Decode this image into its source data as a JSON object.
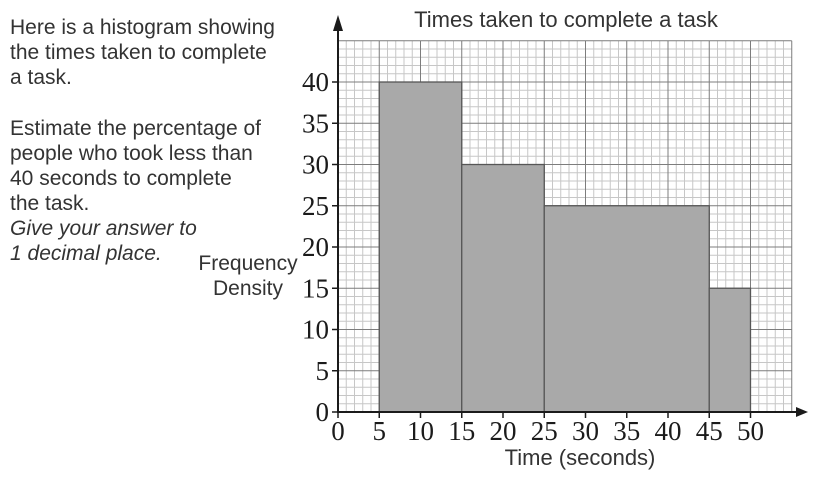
{
  "problem_text": {
    "intro": "Here is a histogram showing\nthe times taken to complete\na task.",
    "question": "Estimate the percentage of\npeople who took less than\n40 seconds to complete\nthe task.",
    "note_italic": "Give your answer to\n1 decimal place."
  },
  "colors": {
    "bar_fill": "#a9a9a9",
    "bar_stroke": "#565656",
    "grid_minor": "#c7c7c7",
    "grid_major": "#7d7d7d",
    "axis": "#1b1b1b",
    "text": "#333333"
  },
  "chart_data": {
    "type": "bar",
    "subtype": "histogram",
    "title": "Times taken to complete a task",
    "xlabel": "Time (seconds)",
    "ylabel": "Frequency Density",
    "x_ticks": [
      0,
      5,
      10,
      15,
      20,
      25,
      30,
      35,
      40,
      45,
      50
    ],
    "y_ticks": [
      0,
      5,
      10,
      15,
      20,
      25,
      30,
      35,
      40
    ],
    "xlim": [
      0,
      55
    ],
    "ylim": [
      0,
      45
    ],
    "grid": "on, minor every 1 unit, major every 5 units",
    "legend": "none",
    "bars": [
      {
        "x_from": 5,
        "x_to": 15,
        "frequency_density": 40
      },
      {
        "x_from": 15,
        "x_to": 25,
        "frequency_density": 30
      },
      {
        "x_from": 25,
        "x_to": 45,
        "frequency_density": 25
      },
      {
        "x_from": 45,
        "x_to": 50,
        "frequency_density": 15
      }
    ]
  }
}
